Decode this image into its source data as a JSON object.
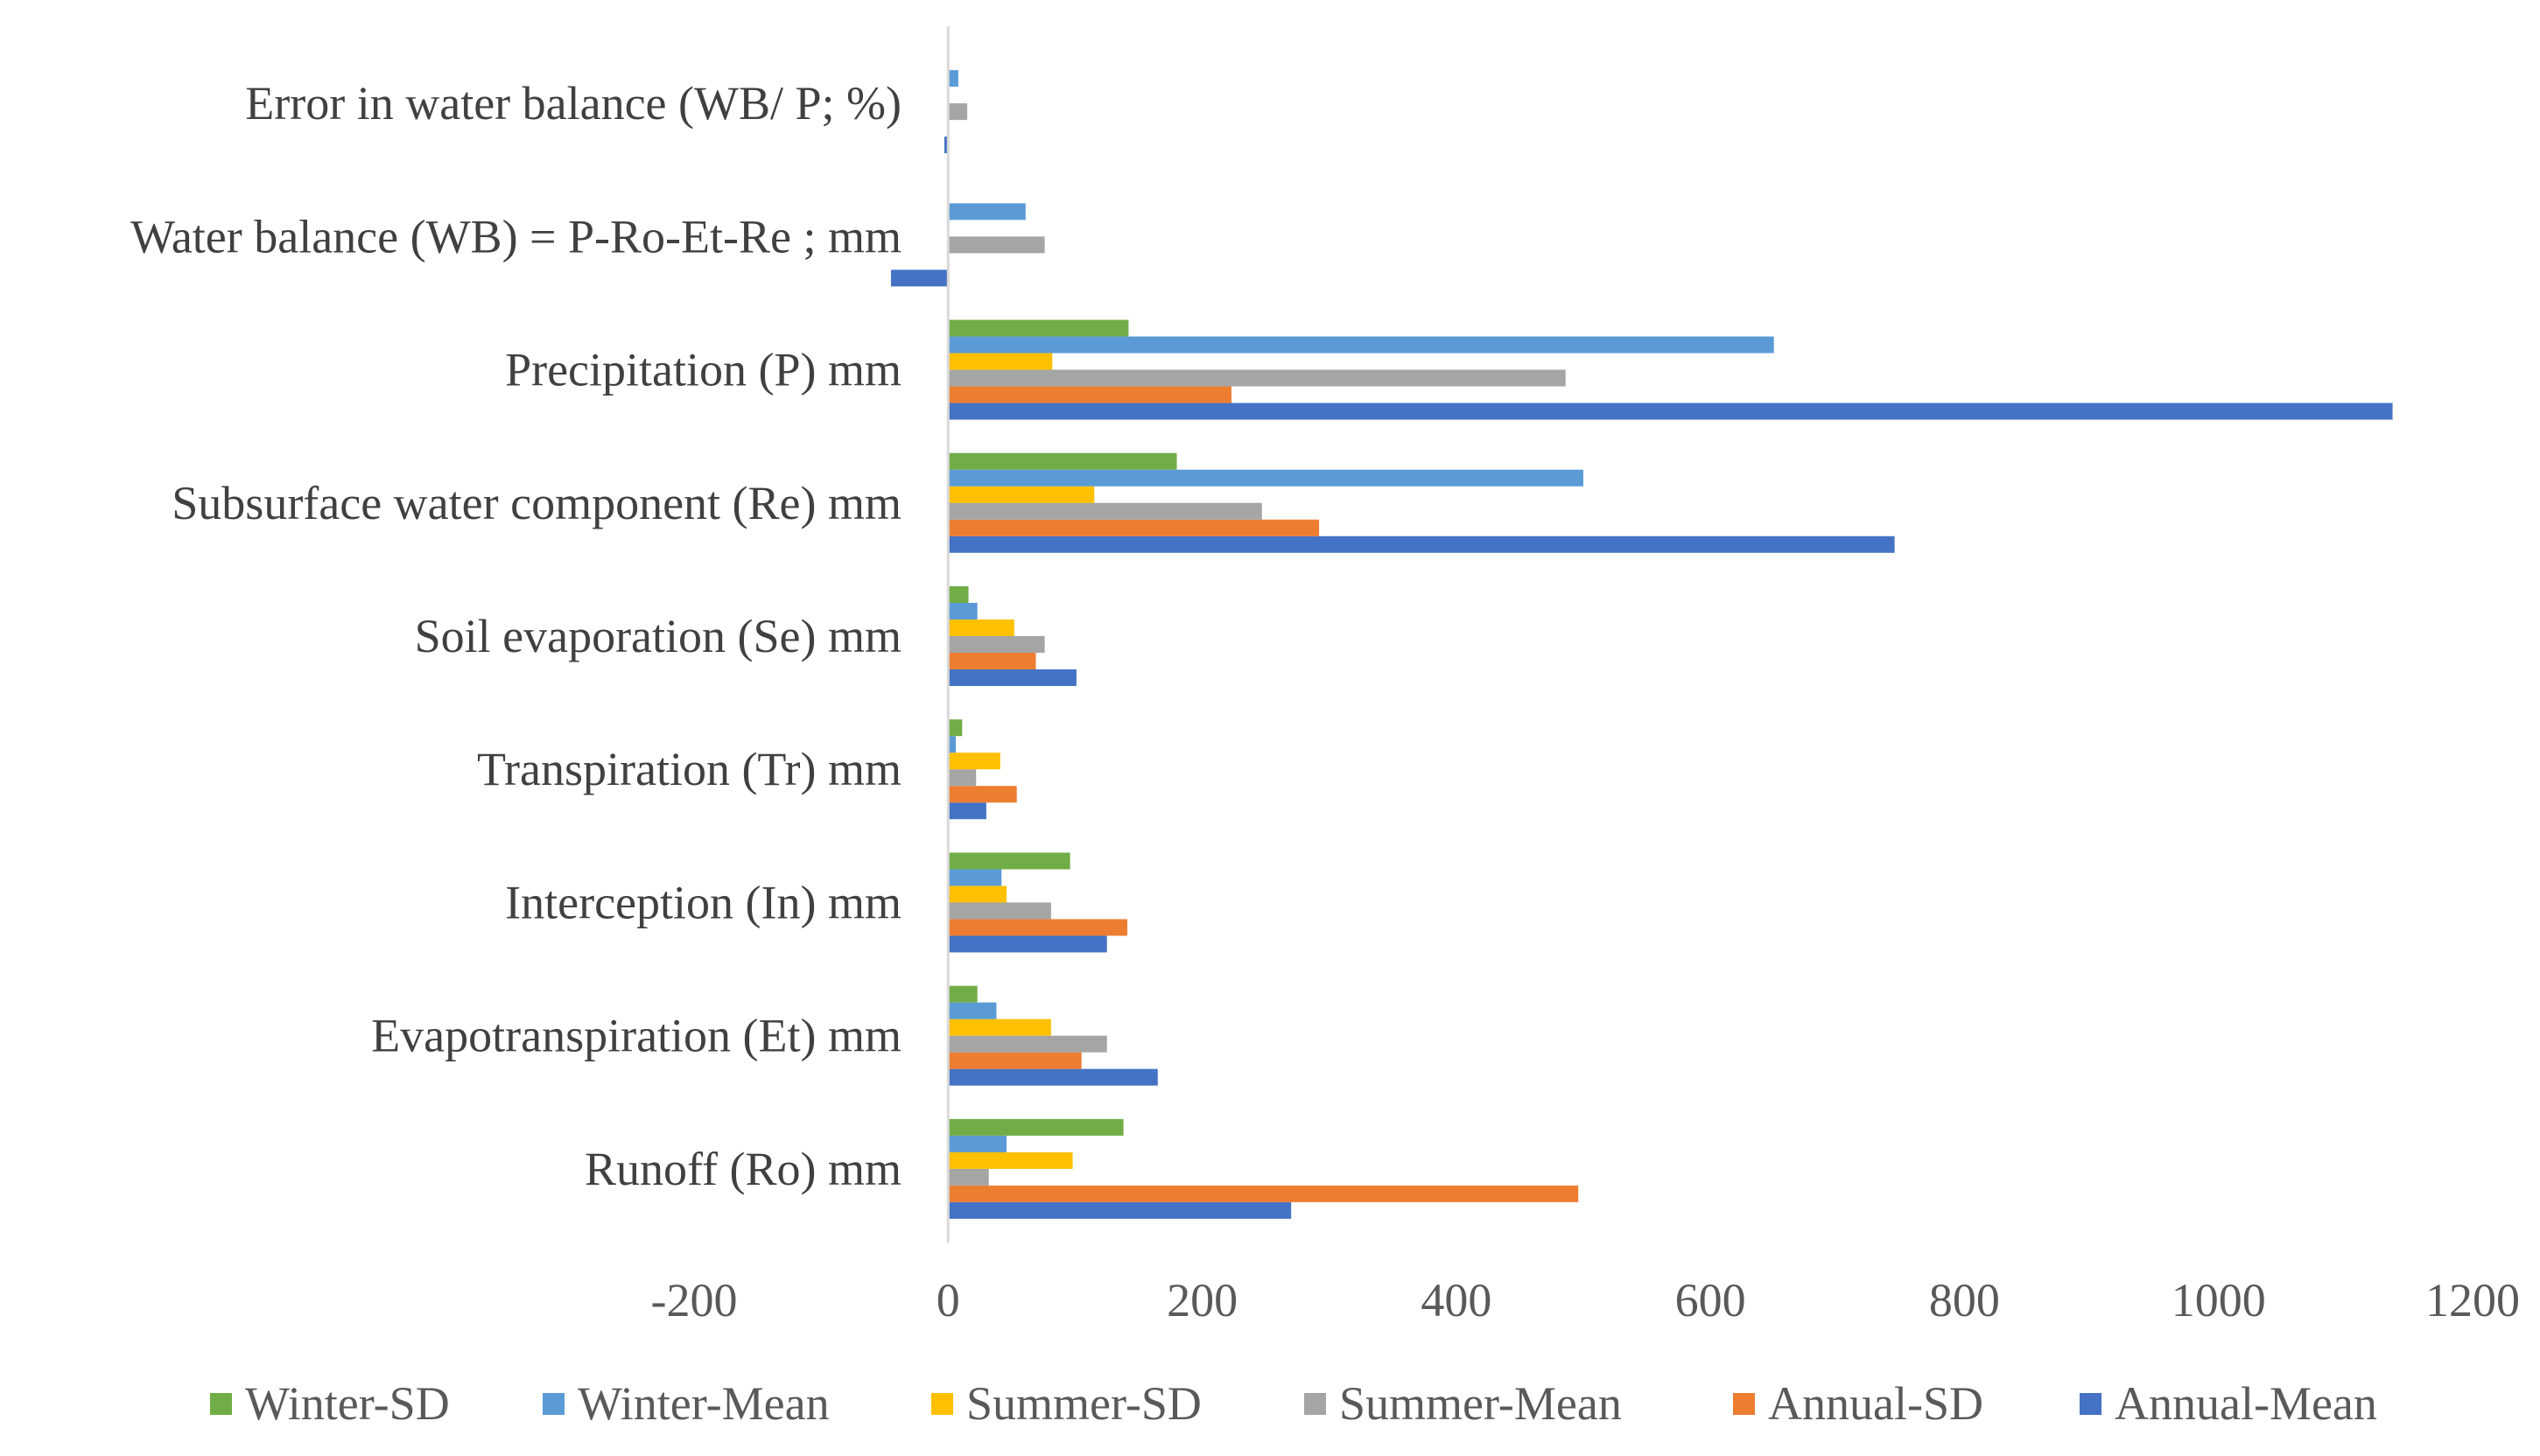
{
  "chart_data": {
    "type": "bar",
    "orientation": "horizontal",
    "title": "",
    "xlabel": "",
    "ylabel": "",
    "xlim": [
      -200,
      1200
    ],
    "ticks": [
      "-200",
      "0",
      "200",
      "400",
      "600",
      "800",
      "1000",
      "1200"
    ],
    "tick_values": [
      -200,
      0,
      200,
      400,
      600,
      800,
      1000,
      1200
    ],
    "grid": false,
    "legend_position": "bottom",
    "categories": [
      "Runoff (Ro) mm",
      "Evapotranspiration (Et)  mm",
      "Interception (In) mm",
      "Transpiration (Tr) mm",
      "Soil evaporation (Se) mm",
      "Subsurface water component (Re) mm",
      "Precipitation (P) mm",
      "Water balance (WB) = P-Ro-Et-Re ; mm",
      "Error in water balance (WB/ P; %)"
    ],
    "series": [
      {
        "name": "Annual-Mean",
        "color": "#4472C4",
        "values": [
          270,
          165,
          125,
          30,
          101,
          745,
          1137,
          -45,
          -3
        ]
      },
      {
        "name": "Annual-SD",
        "color": "#ED7D31",
        "values": [
          496,
          105,
          141,
          54,
          69,
          292,
          223,
          0,
          0
        ]
      },
      {
        "name": "Summer-Mean",
        "color": "#A5A5A5",
        "values": [
          32,
          125,
          81,
          22,
          76,
          247,
          486,
          76,
          15
        ]
      },
      {
        "name": "Summer-SD",
        "color": "#FFC000",
        "values": [
          98,
          81,
          46,
          41,
          52,
          115,
          82,
          0,
          0
        ]
      },
      {
        "name": "Winter-Mean",
        "color": "#5B9BD5",
        "values": [
          46,
          38,
          42,
          6,
          23,
          500,
          650,
          61,
          8
        ]
      },
      {
        "name": "Winter-SD",
        "color": "#70AD47",
        "values": [
          138,
          23,
          96,
          11,
          16,
          180,
          142,
          0,
          0
        ]
      }
    ],
    "legend_order": [
      "Winter-SD",
      "Winter-Mean",
      "Summer-SD",
      "Summer-Mean",
      "Annual-SD",
      "Annual-Mean"
    ]
  }
}
